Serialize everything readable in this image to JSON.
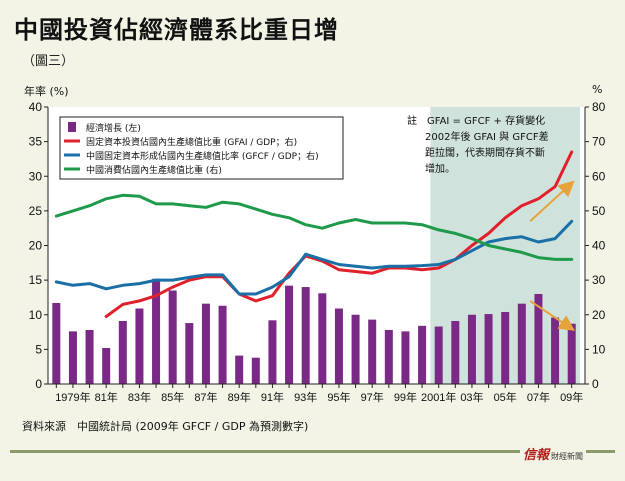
{
  "header": {
    "title": "中國投資佔經濟體系比重日增",
    "subtitle": "（圖三）",
    "left_unit": "年率 (%)",
    "right_unit": "%"
  },
  "footer": {
    "source": "資料來源　中國統計局 (2009年 GFCF / GDP 為預測數字)",
    "brand": "信報",
    "brand_sub": "財經新聞"
  },
  "colors": {
    "bars": "#7a2a86",
    "gfai": "#e0202a",
    "gfcf": "#1a6fa6",
    "consumption": "#1f9a4a",
    "shade": "#cfe3dc",
    "arrow": "#e8a23a",
    "background": "#f3f4e6"
  },
  "chart_data": {
    "type": "bar+line",
    "x": [
      1978,
      1979,
      1980,
      1981,
      1982,
      1983,
      1984,
      1985,
      1986,
      1987,
      1988,
      1989,
      1990,
      1991,
      1992,
      1993,
      1994,
      1995,
      1996,
      1997,
      1998,
      1999,
      2000,
      2001,
      2002,
      2003,
      2004,
      2005,
      2006,
      2007,
      2008,
      2009
    ],
    "x_tick_labels": [
      {
        "year": 1979,
        "label": "1979年"
      },
      {
        "year": 1981,
        "label": "81年"
      },
      {
        "year": 1983,
        "label": "83年"
      },
      {
        "year": 1985,
        "label": "85年"
      },
      {
        "year": 1987,
        "label": "87年"
      },
      {
        "year": 1989,
        "label": "89年"
      },
      {
        "year": 1991,
        "label": "91年"
      },
      {
        "year": 1993,
        "label": "93年"
      },
      {
        "year": 1995,
        "label": "95年"
      },
      {
        "year": 1997,
        "label": "97年"
      },
      {
        "year": 1999,
        "label": "99年"
      },
      {
        "year": 2001,
        "label": "2001年"
      },
      {
        "year": 2003,
        "label": "03年"
      },
      {
        "year": 2005,
        "label": "05年"
      },
      {
        "year": 2007,
        "label": "07年"
      },
      {
        "year": 2009,
        "label": "09年"
      }
    ],
    "left_axis": {
      "range": [
        0,
        40
      ],
      "ticks": [
        0,
        5,
        10,
        15,
        20,
        25,
        30,
        35,
        40
      ]
    },
    "right_axis": {
      "range": [
        0,
        80
      ],
      "ticks": [
        0,
        10,
        20,
        30,
        40,
        50,
        60,
        70,
        80
      ]
    },
    "series": [
      {
        "name": "經濟增長 (左)",
        "type": "bar",
        "axis": "left",
        "values": [
          11.7,
          7.6,
          7.8,
          5.2,
          9.1,
          10.9,
          15.2,
          13.5,
          8.8,
          11.6,
          11.3,
          4.1,
          3.8,
          9.2,
          14.2,
          14.0,
          13.1,
          10.9,
          10.0,
          9.3,
          7.8,
          7.6,
          8.4,
          8.3,
          9.1,
          10.0,
          10.1,
          10.4,
          11.6,
          13.0,
          9.6,
          8.7
        ]
      },
      {
        "name": "固定資本投資佔國內生產總值比重 (GFAI / GDP；右)",
        "type": "line",
        "axis": "right",
        "values": [
          null,
          null,
          null,
          19.5,
          23,
          24,
          25.5,
          28,
          30,
          31,
          31,
          26,
          24,
          25.5,
          32,
          37,
          35.5,
          33,
          32.5,
          32,
          33.5,
          33.5,
          33,
          33.5,
          36,
          40,
          43.5,
          48,
          51.5,
          53.5,
          57,
          67
        ]
      },
      {
        "name": "中國固定資本形成佔國內生產總值比率 (GFCF / GDP；右)",
        "type": "line",
        "axis": "right",
        "values": [
          29.5,
          28.5,
          29,
          27.5,
          28.5,
          29,
          30,
          30,
          30.8,
          31.5,
          31.5,
          26,
          26,
          28,
          31,
          37.5,
          36,
          34.5,
          34,
          33.5,
          34,
          34,
          34.2,
          34.5,
          36,
          38.5,
          41,
          42,
          42.5,
          41,
          42,
          47
        ]
      },
      {
        "name": "中國消費佔國內生產總值比重 (右)",
        "type": "line",
        "axis": "right",
        "values": [
          48.5,
          50,
          51.5,
          53.5,
          54.5,
          54.2,
          52,
          52,
          51.5,
          51,
          52.5,
          52,
          50.5,
          49,
          48,
          46,
          45,
          46.5,
          47.5,
          46.5,
          46.5,
          46.5,
          46,
          44.5,
          43.5,
          42,
          40,
          39,
          38,
          36.5,
          36,
          36
        ]
      }
    ],
    "legend": [
      {
        "label": "經濟增長 (左)",
        "kind": "bar"
      },
      {
        "label": "固定資本投資佔國內生產總值比重 (GFAI / GDP；右)",
        "kind": "line"
      },
      {
        "label": "中國固定資本形成佔國內生產總值比率 (GFCF / GDP；右)",
        "kind": "line"
      },
      {
        "label": "中國消費佔國內生產總值比重 (右)",
        "kind": "line"
      }
    ],
    "legend_position": "top-left",
    "shaded_region": {
      "from_year": 2000.5,
      "to_year": 2009.5
    },
    "note": [
      "註　GFAI = GFCF + 存貨變化",
      "2002年後 GFAI 與 GFCF差",
      "距拉闊，代表期間存貨不斷",
      "增加。"
    ],
    "arrows": [
      {
        "from": [
          2006.5,
          47
        ],
        "to": [
          2009,
          58
        ]
      },
      {
        "from": [
          2006.5,
          24
        ],
        "to": [
          2009,
          16
        ]
      }
    ],
    "grid": false
  }
}
